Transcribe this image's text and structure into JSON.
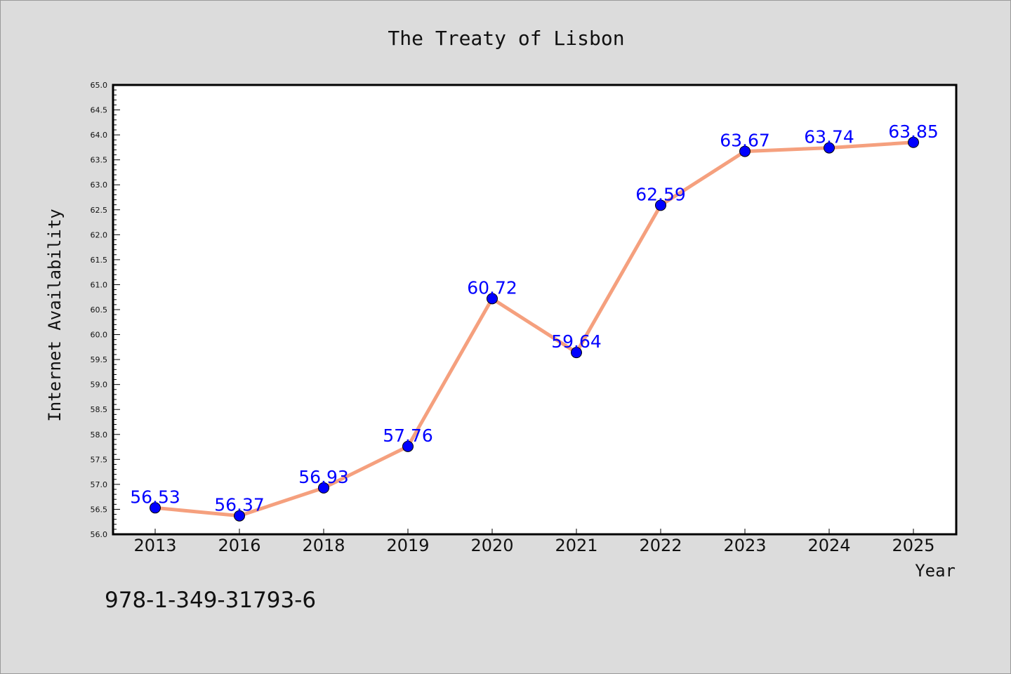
{
  "footnote": "978-1-349-31793-6",
  "chart_data": {
    "type": "line",
    "title": "The Treaty of Lisbon",
    "xlabel": "Year",
    "ylabel": "Internet Availability",
    "categories": [
      "2013",
      "2016",
      "2018",
      "2019",
      "2020",
      "2021",
      "2022",
      "2023",
      "2024",
      "2025"
    ],
    "series": [
      {
        "values": [
          56.53,
          56.37,
          56.93,
          57.76,
          60.72,
          59.64,
          62.59,
          63.67,
          63.74,
          63.85
        ]
      }
    ],
    "data_labels": [
      "56.53",
      "56.37",
      "56.93",
      "57.76",
      "60.72",
      "59.64",
      "62.59",
      "63.67",
      "63.74",
      "63.85"
    ],
    "ylim": [
      56.0,
      65.0
    ],
    "yticks": [
      "56.0",
      "56.5",
      "57.0",
      "57.5",
      "58.0",
      "58.5",
      "59.0",
      "59.5",
      "60.0",
      "60.5",
      "61.0",
      "61.5",
      "62.0",
      "62.5",
      "63.0",
      "63.5",
      "64.0",
      "64.5",
      "65.0"
    ],
    "grid": false,
    "legend": "none",
    "colors": {
      "line": "#f5a07e",
      "marker": "#0000ff",
      "data_label": "#0000ff",
      "background": "#dcdcdc",
      "plot_background": "#ffffff"
    }
  }
}
